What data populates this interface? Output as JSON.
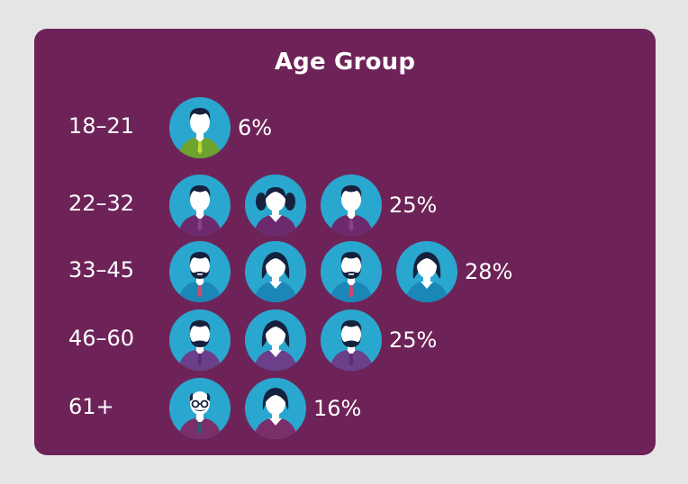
{
  "chart_data": {
    "type": "bar",
    "title": "Age Group",
    "categories": [
      "18–21",
      "22–32",
      "33–45",
      "46–60",
      "61+"
    ],
    "values": [
      6,
      25,
      28,
      25,
      16
    ],
    "value_labels": [
      "6%",
      "25%",
      "28%",
      "25%",
      "16%"
    ],
    "xlabel": "",
    "ylabel": "",
    "icons_per_row": [
      [
        "man-young-icon"
      ],
      [
        "man-icon",
        "woman-pigtails-icon",
        "man-icon"
      ],
      [
        "man-bearded-icon",
        "woman-icon",
        "man-bearded-icon",
        "woman-icon"
      ],
      [
        "man-mustache-icon",
        "woman-icon",
        "man-mustache-icon"
      ],
      [
        "man-elderly-glasses-icon",
        "woman-short-hair-icon"
      ]
    ],
    "icon_colors": {
      "circle": "#2aa7cf",
      "face": "#ffffff",
      "hair": "#16213d",
      "shirt_rows": [
        "#6ea32d",
        "#6c2a6d",
        "#1b87b6",
        "#6b3f8a",
        "#7a2f6b"
      ],
      "accent_rows": [
        "#c3dc35",
        "#8b3f8f",
        "#d6456b",
        "#5a2f7a",
        "#2b5f70"
      ]
    }
  },
  "colors": {
    "page_background": "#e5e5e5",
    "card_background": "#6e2358",
    "text": "#ffffff"
  }
}
